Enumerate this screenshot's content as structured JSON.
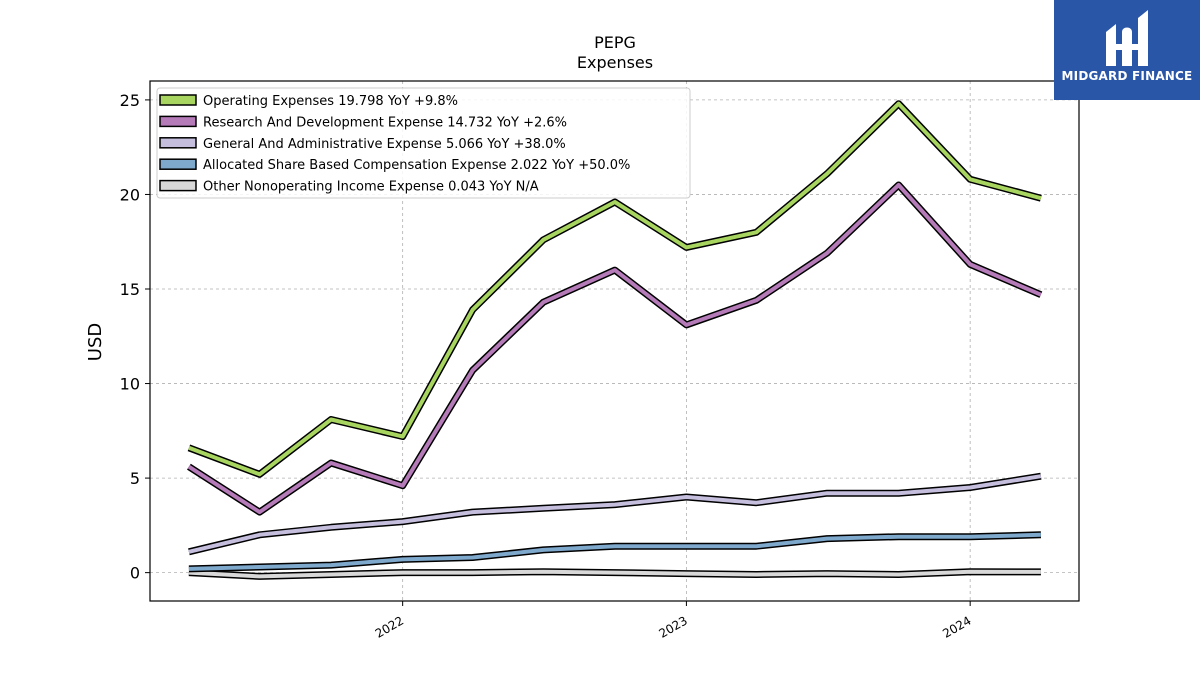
{
  "logo": {
    "text": "MIDGARD FINANCE",
    "icon": "midgard-logo-icon",
    "background": "#2a56a8"
  },
  "chart_data": {
    "type": "line",
    "title": "PEPG",
    "subtitle": "Expenses",
    "ylabel": "USD",
    "xlabel": "",
    "ylim": [
      -1.5,
      26
    ],
    "yticks": [
      0,
      5,
      10,
      15,
      20,
      25
    ],
    "xlim": [
      "2021-02-10",
      "2024-05-20"
    ],
    "xticks": [
      {
        "label": "2022",
        "date": "2022-01-01"
      },
      {
        "label": "2023",
        "date": "2023-01-01"
      },
      {
        "label": "2024",
        "date": "2024-01-01"
      }
    ],
    "grid": true,
    "legend_position": "upper-left",
    "x": [
      "2021-04-01",
      "2021-07-01",
      "2021-10-01",
      "2022-01-01",
      "2022-04-01",
      "2022-07-01",
      "2022-10-01",
      "2023-01-01",
      "2023-04-01",
      "2023-07-01",
      "2023-10-01",
      "2024-01-01",
      "2024-04-01"
    ],
    "series": [
      {
        "name": "Operating Expenses",
        "legend": "Operating Expenses  19.798 YoY +9.8%",
        "color": "#a8d55f",
        "values": [
          6.6,
          5.2,
          8.1,
          7.2,
          13.9,
          17.6,
          19.6,
          17.2,
          18.0,
          21.1,
          24.8,
          20.8,
          19.8
        ]
      },
      {
        "name": "Research And Development Expense",
        "legend": "Research And Development Expense  14.732 YoY +2.6%",
        "color": "#b57ab8",
        "values": [
          5.6,
          3.2,
          5.8,
          4.6,
          10.7,
          14.3,
          16.0,
          13.1,
          14.4,
          16.9,
          20.5,
          16.3,
          14.7
        ]
      },
      {
        "name": "General And Administrative Expense",
        "legend": "General And Administrative Expense  5.066 YoY +38.0%",
        "color": "#c5bedd",
        "values": [
          1.1,
          2.0,
          2.4,
          2.7,
          3.2,
          3.4,
          3.6,
          4.0,
          3.7,
          4.2,
          4.2,
          4.5,
          5.1
        ]
      },
      {
        "name": "Allocated Share Based Compensation Expense",
        "legend": "Allocated Share Based Compensation Expense  2.022 YoY +50.0%",
        "color": "#7fa8cd",
        "values": [
          0.2,
          0.3,
          0.4,
          0.7,
          0.8,
          1.2,
          1.4,
          1.4,
          1.4,
          1.8,
          1.9,
          1.9,
          2.0
        ]
      },
      {
        "name": "Other Nonoperating Income Expense",
        "legend": "Other Nonoperating Income Expense  0.043 YoY N/A",
        "color": "#d8d8d8",
        "values": [
          0.0,
          -0.2,
          -0.1,
          0.0,
          0.0,
          0.05,
          0.0,
          -0.05,
          -0.1,
          -0.05,
          -0.1,
          0.05,
          0.04
        ]
      }
    ]
  }
}
